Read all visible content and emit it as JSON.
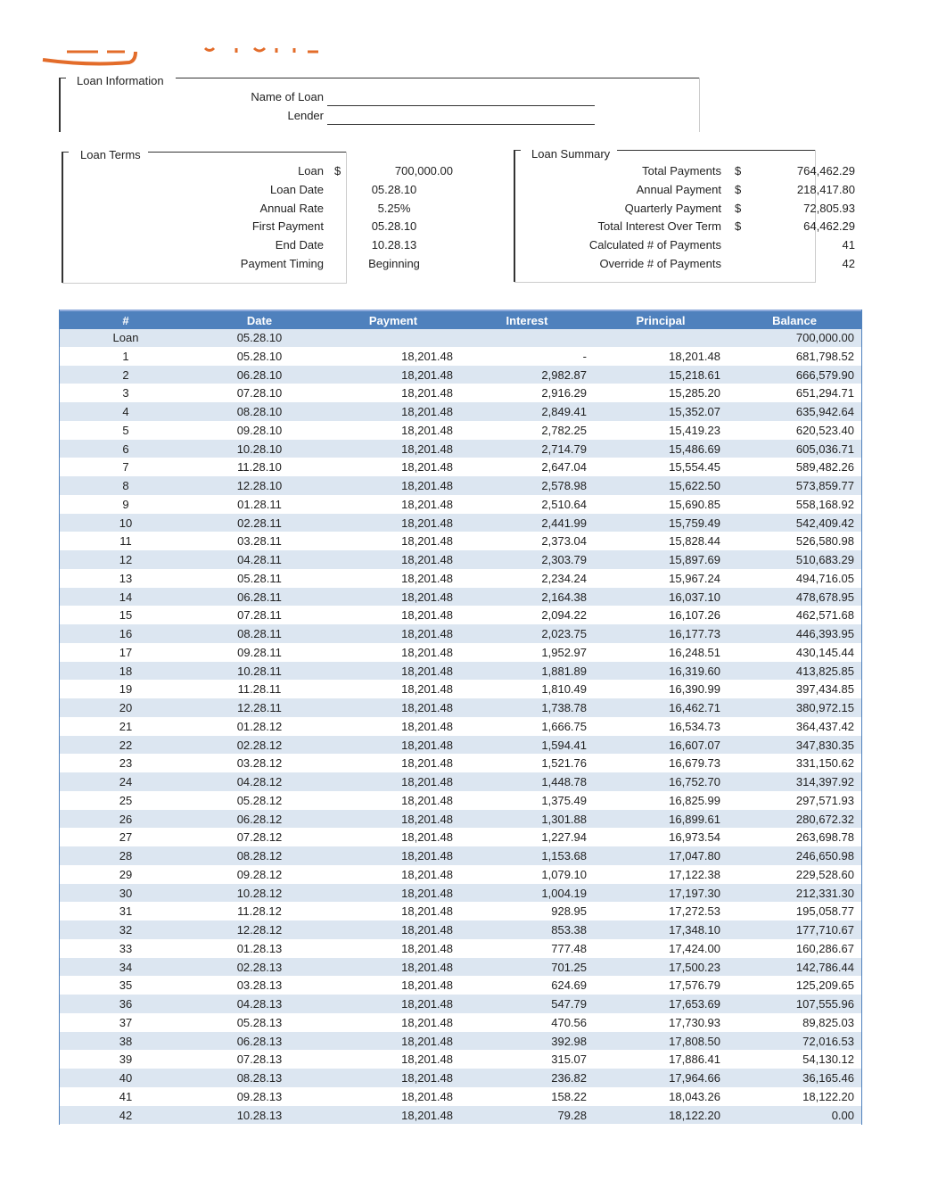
{
  "loan_information": {
    "title": "Loan Information",
    "fields": [
      "Name of Loan",
      "Lender"
    ]
  },
  "loan_terms": {
    "title": "Loan Terms",
    "rows": [
      {
        "label": "Loan",
        "currency": "$",
        "value": "700,000.00"
      },
      {
        "label": "Loan Date",
        "value": "05.28.10"
      },
      {
        "label": "Annual Rate",
        "value": "5.25%"
      },
      {
        "label": "First Payment",
        "value": "05.28.10"
      },
      {
        "label": "End Date",
        "value": "10.28.13"
      },
      {
        "label": "Payment Timing",
        "value": "Beginning"
      }
    ]
  },
  "loan_summary": {
    "title": "Loan Summary",
    "rows": [
      {
        "label": "Total Payments",
        "currency": "$",
        "value": "764,462.29"
      },
      {
        "label": "Annual Payment",
        "currency": "$",
        "value": "218,417.80"
      },
      {
        "label": "Quarterly Payment",
        "currency": "$",
        "value": "72,805.93"
      },
      {
        "label": "Total Interest Over Term",
        "currency": "$",
        "value": "64,462.29"
      },
      {
        "label": "Calculated # of Payments",
        "value": "41"
      },
      {
        "label": "Override # of Payments",
        "value": "42"
      }
    ]
  },
  "table": {
    "headers": [
      "#",
      "Date",
      "Payment",
      "Interest",
      "Principal",
      "Balance"
    ],
    "rows": [
      [
        "Loan",
        "05.28.10",
        null,
        null,
        null,
        "700,000.00"
      ],
      [
        "1",
        "05.28.10",
        "18,201.48",
        "-",
        "18,201.48",
        "681,798.52"
      ],
      [
        "2",
        "06.28.10",
        "18,201.48",
        "2,982.87",
        "15,218.61",
        "666,579.90"
      ],
      [
        "3",
        "07.28.10",
        "18,201.48",
        "2,916.29",
        "15,285.20",
        "651,294.71"
      ],
      [
        "4",
        "08.28.10",
        "18,201.48",
        "2,849.41",
        "15,352.07",
        "635,942.64"
      ],
      [
        "5",
        "09.28.10",
        "18,201.48",
        "2,782.25",
        "15,419.23",
        "620,523.40"
      ],
      [
        "6",
        "10.28.10",
        "18,201.48",
        "2,714.79",
        "15,486.69",
        "605,036.71"
      ],
      [
        "7",
        "11.28.10",
        "18,201.48",
        "2,647.04",
        "15,554.45",
        "589,482.26"
      ],
      [
        "8",
        "12.28.10",
        "18,201.48",
        "2,578.98",
        "15,622.50",
        "573,859.77"
      ],
      [
        "9",
        "01.28.11",
        "18,201.48",
        "2,510.64",
        "15,690.85",
        "558,168.92"
      ],
      [
        "10",
        "02.28.11",
        "18,201.48",
        "2,441.99",
        "15,759.49",
        "542,409.42"
      ],
      [
        "11",
        "03.28.11",
        "18,201.48",
        "2,373.04",
        "15,828.44",
        "526,580.98"
      ],
      [
        "12",
        "04.28.11",
        "18,201.48",
        "2,303.79",
        "15,897.69",
        "510,683.29"
      ],
      [
        "13",
        "05.28.11",
        "18,201.48",
        "2,234.24",
        "15,967.24",
        "494,716.05"
      ],
      [
        "14",
        "06.28.11",
        "18,201.48",
        "2,164.38",
        "16,037.10",
        "478,678.95"
      ],
      [
        "15",
        "07.28.11",
        "18,201.48",
        "2,094.22",
        "16,107.26",
        "462,571.68"
      ],
      [
        "16",
        "08.28.11",
        "18,201.48",
        "2,023.75",
        "16,177.73",
        "446,393.95"
      ],
      [
        "17",
        "09.28.11",
        "18,201.48",
        "1,952.97",
        "16,248.51",
        "430,145.44"
      ],
      [
        "18",
        "10.28.11",
        "18,201.48",
        "1,881.89",
        "16,319.60",
        "413,825.85"
      ],
      [
        "19",
        "11.28.11",
        "18,201.48",
        "1,810.49",
        "16,390.99",
        "397,434.85"
      ],
      [
        "20",
        "12.28.11",
        "18,201.48",
        "1,738.78",
        "16,462.71",
        "380,972.15"
      ],
      [
        "21",
        "01.28.12",
        "18,201.48",
        "1,666.75",
        "16,534.73",
        "364,437.42"
      ],
      [
        "22",
        "02.28.12",
        "18,201.48",
        "1,594.41",
        "16,607.07",
        "347,830.35"
      ],
      [
        "23",
        "03.28.12",
        "18,201.48",
        "1,521.76",
        "16,679.73",
        "331,150.62"
      ],
      [
        "24",
        "04.28.12",
        "18,201.48",
        "1,448.78",
        "16,752.70",
        "314,397.92"
      ],
      [
        "25",
        "05.28.12",
        "18,201.48",
        "1,375.49",
        "16,825.99",
        "297,571.93"
      ],
      [
        "26",
        "06.28.12",
        "18,201.48",
        "1,301.88",
        "16,899.61",
        "280,672.32"
      ],
      [
        "27",
        "07.28.12",
        "18,201.48",
        "1,227.94",
        "16,973.54",
        "263,698.78"
      ],
      [
        "28",
        "08.28.12",
        "18,201.48",
        "1,153.68",
        "17,047.80",
        "246,650.98"
      ],
      [
        "29",
        "09.28.12",
        "18,201.48",
        "1,079.10",
        "17,122.38",
        "229,528.60"
      ],
      [
        "30",
        "10.28.12",
        "18,201.48",
        "1,004.19",
        "17,197.30",
        "212,331.30"
      ],
      [
        "31",
        "11.28.12",
        "18,201.48",
        "928.95",
        "17,272.53",
        "195,058.77"
      ],
      [
        "32",
        "12.28.12",
        "18,201.48",
        "853.38",
        "17,348.10",
        "177,710.67"
      ],
      [
        "33",
        "01.28.13",
        "18,201.48",
        "777.48",
        "17,424.00",
        "160,286.67"
      ],
      [
        "34",
        "02.28.13",
        "18,201.48",
        "701.25",
        "17,500.23",
        "142,786.44"
      ],
      [
        "35",
        "03.28.13",
        "18,201.48",
        "624.69",
        "17,576.79",
        "125,209.65"
      ],
      [
        "36",
        "04.28.13",
        "18,201.48",
        "547.79",
        "17,653.69",
        "107,555.96"
      ],
      [
        "37",
        "05.28.13",
        "18,201.48",
        "470.56",
        "17,730.93",
        "89,825.03"
      ],
      [
        "38",
        "06.28.13",
        "18,201.48",
        "392.98",
        "17,808.50",
        "72,016.53"
      ],
      [
        "39",
        "07.28.13",
        "18,201.48",
        "315.07",
        "17,886.41",
        "54,130.12"
      ],
      [
        "40",
        "08.28.13",
        "18,201.48",
        "236.82",
        "17,964.66",
        "36,165.46"
      ],
      [
        "41",
        "09.28.13",
        "18,201.48",
        "158.22",
        "18,043.26",
        "18,122.20"
      ],
      [
        "42",
        "10.28.13",
        "18,201.48",
        "79.28",
        "18,122.20",
        "0.00"
      ]
    ]
  }
}
